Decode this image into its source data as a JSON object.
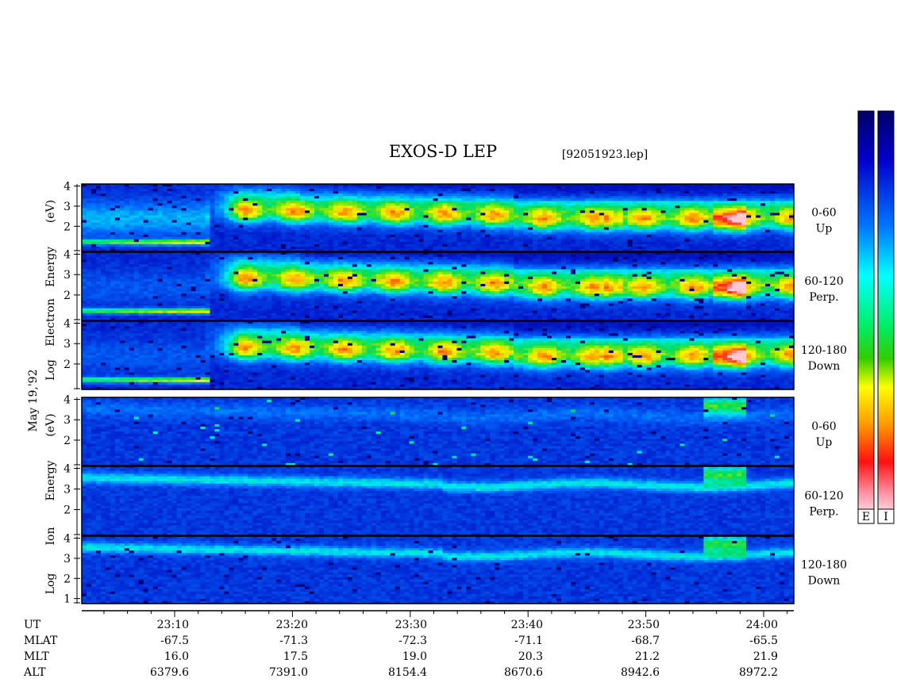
{
  "title": "EXOS-D LEP",
  "filename": "[92051923.lep]",
  "date_label": "May 19,'92",
  "colorbar_labels": [
    "E",
    "I"
  ],
  "colors": {
    "scale": [
      "#ffffff",
      "#ff1a1a",
      "#ff8800",
      "#ffff00",
      "#00dd00",
      "#00ffff",
      "#0066ff",
      "#0000aa",
      "#000066"
    ]
  },
  "chart_data": {
    "type": "heatmap",
    "x_axis": {
      "label": "UT",
      "ticks": [
        "23:10",
        "23:20",
        "23:30",
        "23:40",
        "23:50",
        "24:00"
      ]
    },
    "ephemeris": [
      {
        "label": "UT",
        "values": [
          "23:10",
          "23:20",
          "23:30",
          "23:40",
          "23:50",
          "24:00"
        ]
      },
      {
        "label": "MLAT",
        "values": [
          "-67.5",
          "-71.3",
          "-72.3",
          "-71.1",
          "-68.7",
          "-65.5"
        ]
      },
      {
        "label": "MLT",
        "values": [
          "16.0",
          "17.5",
          "19.0",
          "20.3",
          "21.2",
          "21.9"
        ]
      },
      {
        "label": "ALT",
        "values": [
          "6379.6",
          "7391.0",
          "8154.4",
          "8670.6",
          "8942.6",
          "8972.2"
        ]
      }
    ],
    "groups": [
      {
        "ylabel_words": [
          "Log",
          "Electron",
          "Energy",
          "(eV)"
        ],
        "species": "electron",
        "panels": [
          {
            "label1": "0-60",
            "label2": "Up",
            "yticks": [
              "4",
              "3",
              "2"
            ]
          },
          {
            "label1": "60-120",
            "label2": "Perp.",
            "yticks": [
              "4",
              "3",
              "2"
            ]
          },
          {
            "label1": "120-180",
            "label2": "Down",
            "yticks": [
              "4",
              "3",
              "2"
            ]
          }
        ]
      },
      {
        "ylabel_words": [
          "Log",
          "Ion",
          "Energy",
          "(eV)"
        ],
        "species": "ion",
        "panels": [
          {
            "label1": "0-60",
            "label2": "Up",
            "yticks": [
              "4",
              "3",
              "2"
            ]
          },
          {
            "label1": "60-120",
            "label2": "Perp.",
            "yticks": [
              "4",
              "3",
              "2"
            ]
          },
          {
            "label1": "120-180",
            "label2": "Down",
            "yticks": [
              "4",
              "3",
              "2",
              "1"
            ]
          }
        ]
      }
    ]
  }
}
